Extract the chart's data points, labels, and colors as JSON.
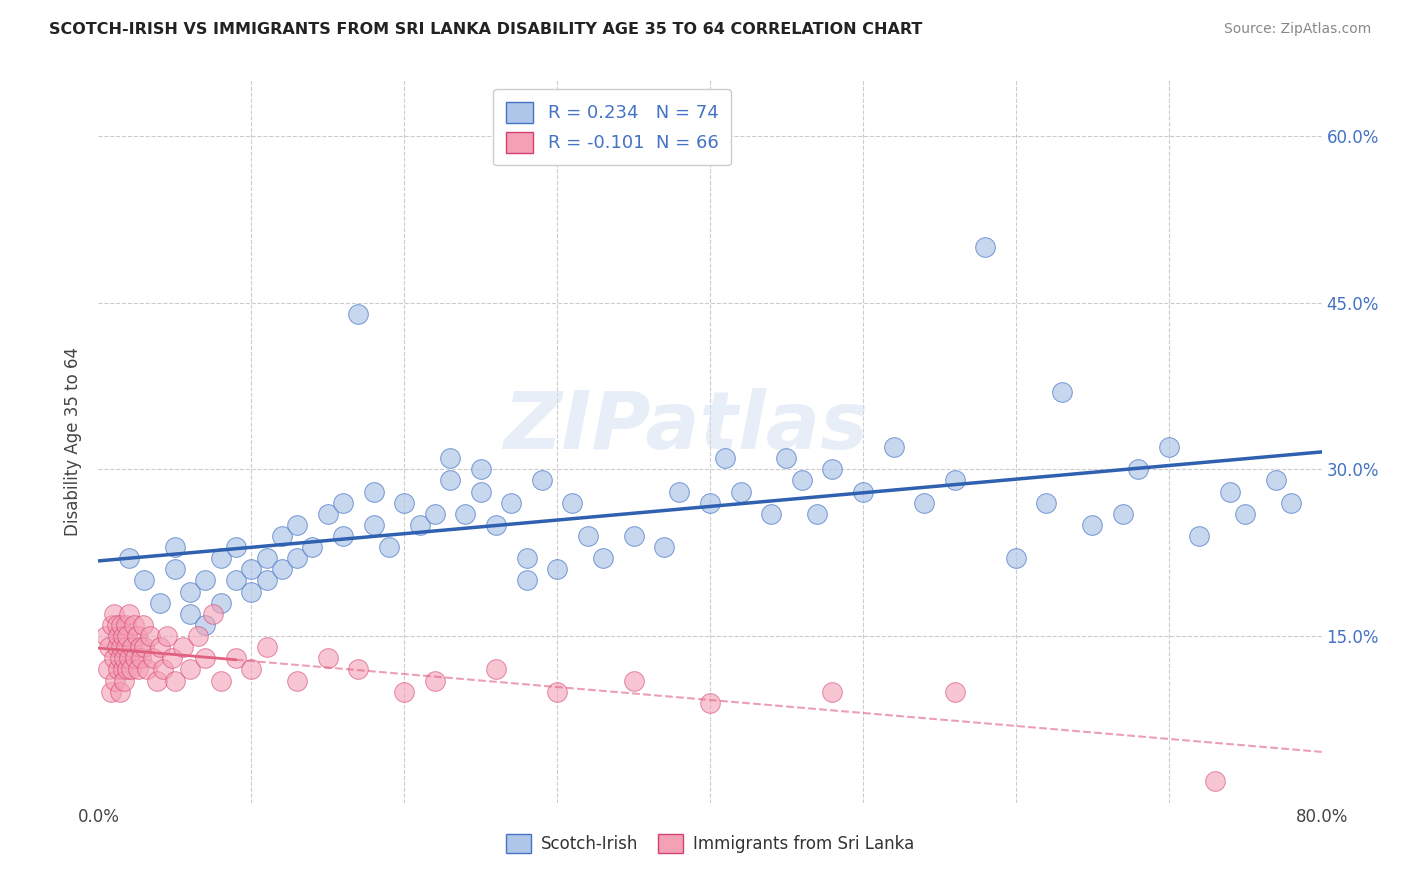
{
  "title": "SCOTCH-IRISH VS IMMIGRANTS FROM SRI LANKA DISABILITY AGE 35 TO 64 CORRELATION CHART",
  "source": "Source: ZipAtlas.com",
  "ylabel": "Disability Age 35 to 64",
  "xlim": [
    0.0,
    0.8
  ],
  "ylim": [
    0.0,
    0.65
  ],
  "xtick_positions": [
    0.0,
    0.1,
    0.2,
    0.3,
    0.4,
    0.5,
    0.6,
    0.7,
    0.8
  ],
  "xticklabels": [
    "0.0%",
    "",
    "",
    "",
    "",
    "",
    "",
    "",
    "80.0%"
  ],
  "ytick_positions": [
    0.0,
    0.15,
    0.3,
    0.45,
    0.6
  ],
  "yticklabels": [
    "",
    "15.0%",
    "30.0%",
    "45.0%",
    "60.0%"
  ],
  "blue_R": 0.234,
  "blue_N": 74,
  "pink_R": -0.101,
  "pink_N": 66,
  "blue_fill": "#aec6e8",
  "pink_fill": "#f4a0b5",
  "blue_edge": "#4472c4",
  "pink_edge": "#d44070",
  "blue_line": "#3060b0",
  "pink_line": "#e06080",
  "watermark": "ZIPatlas",
  "blue_x": [
    0.02,
    0.03,
    0.04,
    0.05,
    0.05,
    0.06,
    0.06,
    0.07,
    0.07,
    0.08,
    0.08,
    0.09,
    0.09,
    0.1,
    0.1,
    0.11,
    0.11,
    0.12,
    0.12,
    0.13,
    0.13,
    0.14,
    0.15,
    0.16,
    0.16,
    0.17,
    0.18,
    0.18,
    0.19,
    0.2,
    0.21,
    0.22,
    0.23,
    0.23,
    0.24,
    0.25,
    0.25,
    0.26,
    0.27,
    0.28,
    0.28,
    0.29,
    0.3,
    0.31,
    0.32,
    0.33,
    0.35,
    0.37,
    0.38,
    0.4,
    0.41,
    0.42,
    0.44,
    0.45,
    0.46,
    0.47,
    0.48,
    0.5,
    0.52,
    0.54,
    0.56,
    0.58,
    0.6,
    0.62,
    0.63,
    0.65,
    0.67,
    0.68,
    0.7,
    0.72,
    0.74,
    0.75,
    0.77,
    0.78
  ],
  "blue_y": [
    0.22,
    0.2,
    0.18,
    0.21,
    0.23,
    0.17,
    0.19,
    0.16,
    0.2,
    0.18,
    0.22,
    0.2,
    0.23,
    0.19,
    0.21,
    0.2,
    0.22,
    0.21,
    0.24,
    0.22,
    0.25,
    0.23,
    0.26,
    0.24,
    0.27,
    0.44,
    0.25,
    0.28,
    0.23,
    0.27,
    0.25,
    0.26,
    0.29,
    0.31,
    0.26,
    0.28,
    0.3,
    0.25,
    0.27,
    0.2,
    0.22,
    0.29,
    0.21,
    0.27,
    0.24,
    0.22,
    0.24,
    0.23,
    0.28,
    0.27,
    0.31,
    0.28,
    0.26,
    0.31,
    0.29,
    0.26,
    0.3,
    0.28,
    0.32,
    0.27,
    0.29,
    0.5,
    0.22,
    0.27,
    0.37,
    0.25,
    0.26,
    0.3,
    0.32,
    0.24,
    0.28,
    0.26,
    0.29,
    0.27
  ],
  "pink_x": [
    0.005,
    0.006,
    0.007,
    0.008,
    0.009,
    0.01,
    0.01,
    0.011,
    0.012,
    0.012,
    0.013,
    0.013,
    0.014,
    0.014,
    0.015,
    0.015,
    0.016,
    0.016,
    0.017,
    0.017,
    0.018,
    0.018,
    0.019,
    0.019,
    0.02,
    0.02,
    0.021,
    0.022,
    0.023,
    0.024,
    0.025,
    0.026,
    0.027,
    0.028,
    0.029,
    0.03,
    0.032,
    0.034,
    0.036,
    0.038,
    0.04,
    0.042,
    0.045,
    0.048,
    0.05,
    0.055,
    0.06,
    0.065,
    0.07,
    0.075,
    0.08,
    0.09,
    0.1,
    0.11,
    0.13,
    0.15,
    0.17,
    0.2,
    0.22,
    0.26,
    0.3,
    0.35,
    0.4,
    0.48,
    0.56,
    0.73
  ],
  "pink_y": [
    0.15,
    0.12,
    0.14,
    0.1,
    0.16,
    0.13,
    0.17,
    0.11,
    0.14,
    0.16,
    0.12,
    0.15,
    0.13,
    0.1,
    0.14,
    0.16,
    0.12,
    0.15,
    0.13,
    0.11,
    0.14,
    0.16,
    0.12,
    0.15,
    0.13,
    0.17,
    0.12,
    0.14,
    0.16,
    0.13,
    0.15,
    0.12,
    0.14,
    0.13,
    0.16,
    0.14,
    0.12,
    0.15,
    0.13,
    0.11,
    0.14,
    0.12,
    0.15,
    0.13,
    0.11,
    0.14,
    0.12,
    0.15,
    0.13,
    0.17,
    0.11,
    0.13,
    0.12,
    0.14,
    0.11,
    0.13,
    0.12,
    0.1,
    0.11,
    0.12,
    0.1,
    0.11,
    0.09,
    0.1,
    0.1,
    0.02
  ]
}
